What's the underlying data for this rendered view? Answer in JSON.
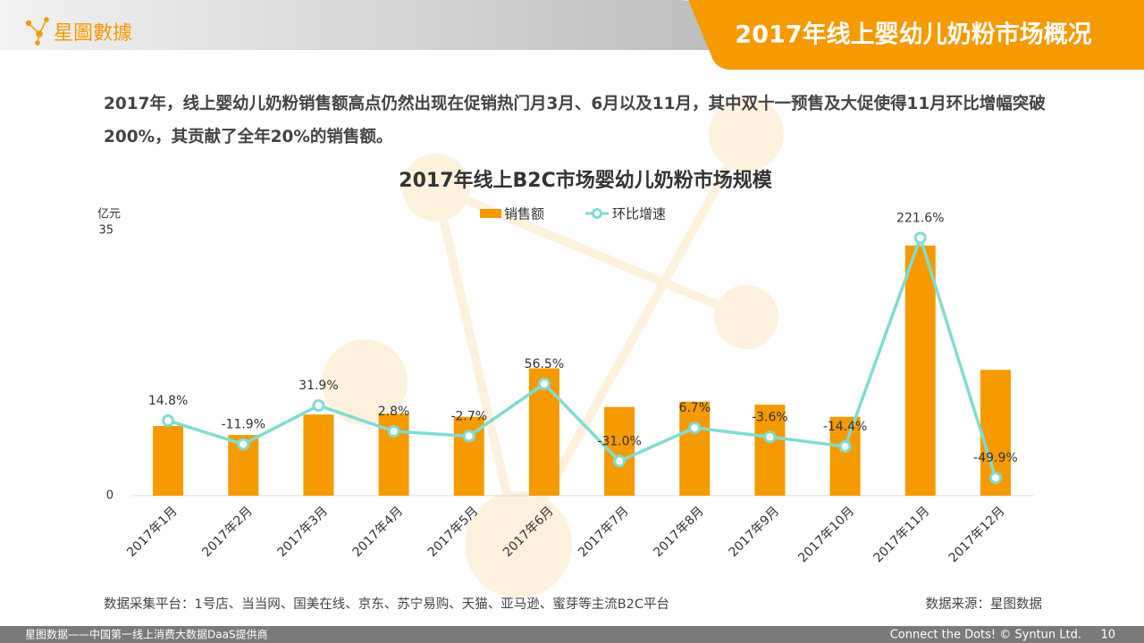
{
  "header": {
    "logo": "星圖數據",
    "title": "2017年线上婴幼儿奶粉市场概况"
  },
  "summary": "2017年，线上婴幼儿奶粉销售额高点仍然出现在促销热门月3月、6月以及11月，其中双十一预售及大促使得11月环比增幅突破200%，其贡献了全年20%的销售额。",
  "chart_data": {
    "type": "bar",
    "title": "2017年线上B2C市场婴幼儿奶粉市场规模",
    "ylabel": "亿元",
    "categories": [
      "2017年1月",
      "2017年2月",
      "2017年3月",
      "2017年4月",
      "2017年5月",
      "2017年6月",
      "2017年7月",
      "2017年8月",
      "2017年9月",
      "2017年10月",
      "2017年11月",
      "2017年12月"
    ],
    "series": [
      {
        "name": "销售额",
        "type": "bar",
        "color": "#f59a00",
        "values": [
          9.2,
          8.0,
          10.7,
          10.8,
          10.4,
          16.8,
          11.7,
          12.4,
          12.0,
          10.4,
          33.0,
          16.6
        ]
      },
      {
        "name": "环比增速",
        "type": "line",
        "axis": "y2",
        "color": "#80dcd3",
        "values": [
          14.8,
          -11.9,
          31.9,
          2.8,
          -2.7,
          56.5,
          -31.0,
          6.7,
          -3.6,
          -14.4,
          221.6,
          -49.9
        ],
        "value_labels": [
          "14.8%",
          "-11.9%",
          "31.9%",
          "2.8%",
          "-2.7%",
          "56.5%",
          "-31.0%",
          "6.7%",
          "-3.6%",
          "-14.4%",
          "221.6%",
          "-49.9%"
        ]
      }
    ],
    "ylim": [
      0,
      35
    ],
    "yticks": [
      0,
      35
    ],
    "y2lim": [
      -70,
      230
    ],
    "grid": false,
    "legend": "top"
  },
  "notes": {
    "platforms": "数据采集平台：1号店、当当网、国美在线、京东、苏宁易购、天猫、亚马逊、蜜芽等主流B2C平台",
    "source": "数据来源：星图数据"
  },
  "footer": {
    "left": "星图数据——中国第一线上消费大数据DaaS提供商",
    "right": "Connect the Dots! © Syntun Ltd.",
    "page": 10
  }
}
